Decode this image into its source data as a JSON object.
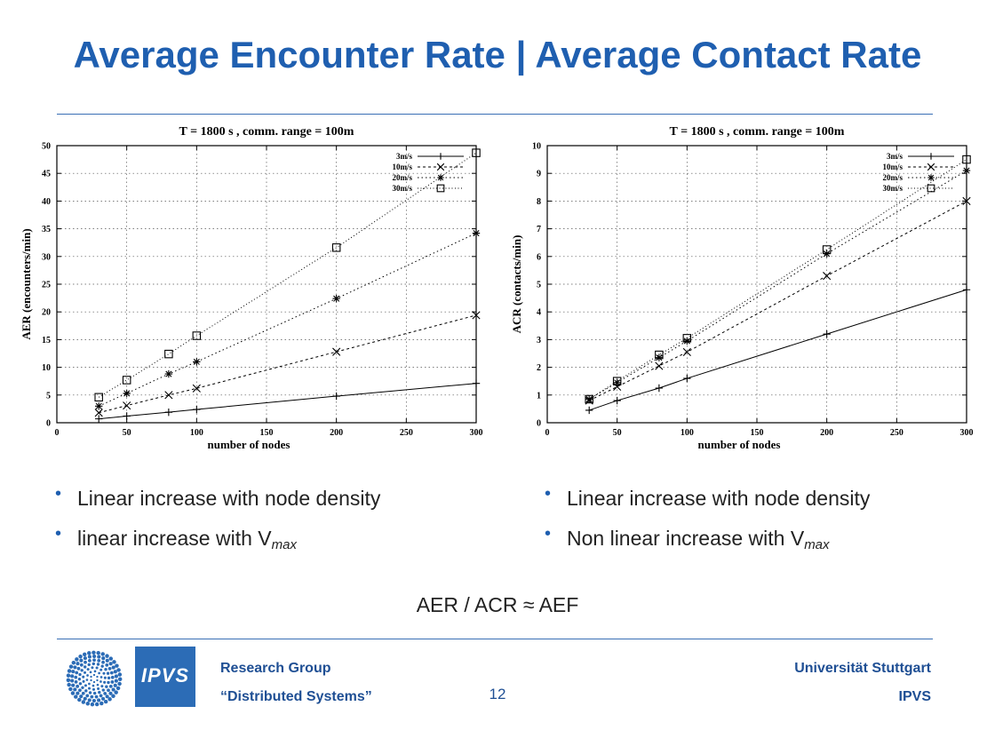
{
  "slide": {
    "title": "Average Encounter Rate | Average Contact Rate",
    "page_number": "12",
    "formula": "AER / ACR ≈ AEF"
  },
  "footer": {
    "left_line1": "Research Group",
    "left_line2": "“Distributed Systems”",
    "right_line1": "Universität Stuttgart",
    "right_line2": "IPVS",
    "logo_text": "IPVS"
  },
  "bullets_left": [
    {
      "text": "Linear increase with node density",
      "suffix": ""
    },
    {
      "text": "linear increase with V",
      "suffix": "max"
    }
  ],
  "bullets_right": [
    {
      "text": "Linear increase with node density",
      "suffix": ""
    },
    {
      "text": "Non linear increase with V",
      "suffix": "max"
    }
  ],
  "colors": {
    "title": "#1f5fb0",
    "rule": "#3a6fb5",
    "footer": "#1f4f94",
    "logo_bg": "#2c6cb6"
  },
  "chart_data": [
    {
      "type": "line",
      "title": "T = 1800 s , comm. range = 100m",
      "xlabel": "number of nodes",
      "ylabel": "AER (encounters/min)",
      "xlim": [
        0,
        300
      ],
      "ylim": [
        0,
        50
      ],
      "xticks": [
        0,
        50,
        100,
        150,
        200,
        250,
        300
      ],
      "yticks": [
        0,
        5,
        10,
        15,
        20,
        25,
        30,
        35,
        40,
        45,
        50
      ],
      "grid": true,
      "legend": "top-right",
      "series": [
        {
          "name": "3m/s",
          "marker": "plus",
          "dash": "",
          "x": [
            30,
            50,
            80,
            100,
            200,
            300
          ],
          "y": [
            0.7,
            1.2,
            1.9,
            2.4,
            4.8,
            7.1
          ]
        },
        {
          "name": "10m/s",
          "marker": "cross",
          "dash": "3,3",
          "x": [
            30,
            50,
            80,
            100,
            200,
            300
          ],
          "y": [
            1.8,
            3.1,
            5.0,
            6.2,
            12.8,
            19.4
          ]
        },
        {
          "name": "20m/s",
          "marker": "star",
          "dash": "1.5,3",
          "x": [
            30,
            50,
            80,
            100,
            200,
            300
          ],
          "y": [
            3.0,
            5.3,
            8.8,
            11.0,
            22.4,
            34.2
          ]
        },
        {
          "name": "30m/s",
          "marker": "square",
          "dash": "1,2.5",
          "x": [
            30,
            50,
            80,
            100,
            200,
            300
          ],
          "y": [
            4.6,
            7.7,
            12.4,
            15.7,
            31.6,
            48.7
          ]
        }
      ]
    },
    {
      "type": "line",
      "title": "T = 1800 s , comm. range = 100m",
      "xlabel": "number of nodes",
      "ylabel": "ACR (contacts/min)",
      "xlim": [
        0,
        300
      ],
      "ylim": [
        0,
        10
      ],
      "xticks": [
        0,
        50,
        100,
        150,
        200,
        250,
        300
      ],
      "yticks": [
        0,
        1,
        2,
        3,
        4,
        5,
        6,
        7,
        8,
        9,
        10
      ],
      "grid": true,
      "legend": "top-right",
      "series": [
        {
          "name": "3m/s",
          "marker": "plus",
          "dash": "",
          "x": [
            30,
            50,
            80,
            100,
            200,
            300
          ],
          "y": [
            0.45,
            0.8,
            1.25,
            1.6,
            3.2,
            4.8
          ]
        },
        {
          "name": "10m/s",
          "marker": "cross",
          "dash": "3,3",
          "x": [
            30,
            50,
            80,
            100,
            200,
            300
          ],
          "y": [
            0.8,
            1.3,
            2.05,
            2.55,
            5.3,
            8.0
          ]
        },
        {
          "name": "20m/s",
          "marker": "star",
          "dash": "1.5,3",
          "x": [
            30,
            50,
            80,
            100,
            200,
            300
          ],
          "y": [
            0.85,
            1.45,
            2.35,
            2.95,
            6.1,
            9.1
          ]
        },
        {
          "name": "30m/s",
          "marker": "square",
          "dash": "1,2.5",
          "x": [
            30,
            50,
            80,
            100,
            200,
            300
          ],
          "y": [
            0.85,
            1.5,
            2.45,
            3.05,
            6.25,
            9.5
          ]
        }
      ]
    }
  ]
}
